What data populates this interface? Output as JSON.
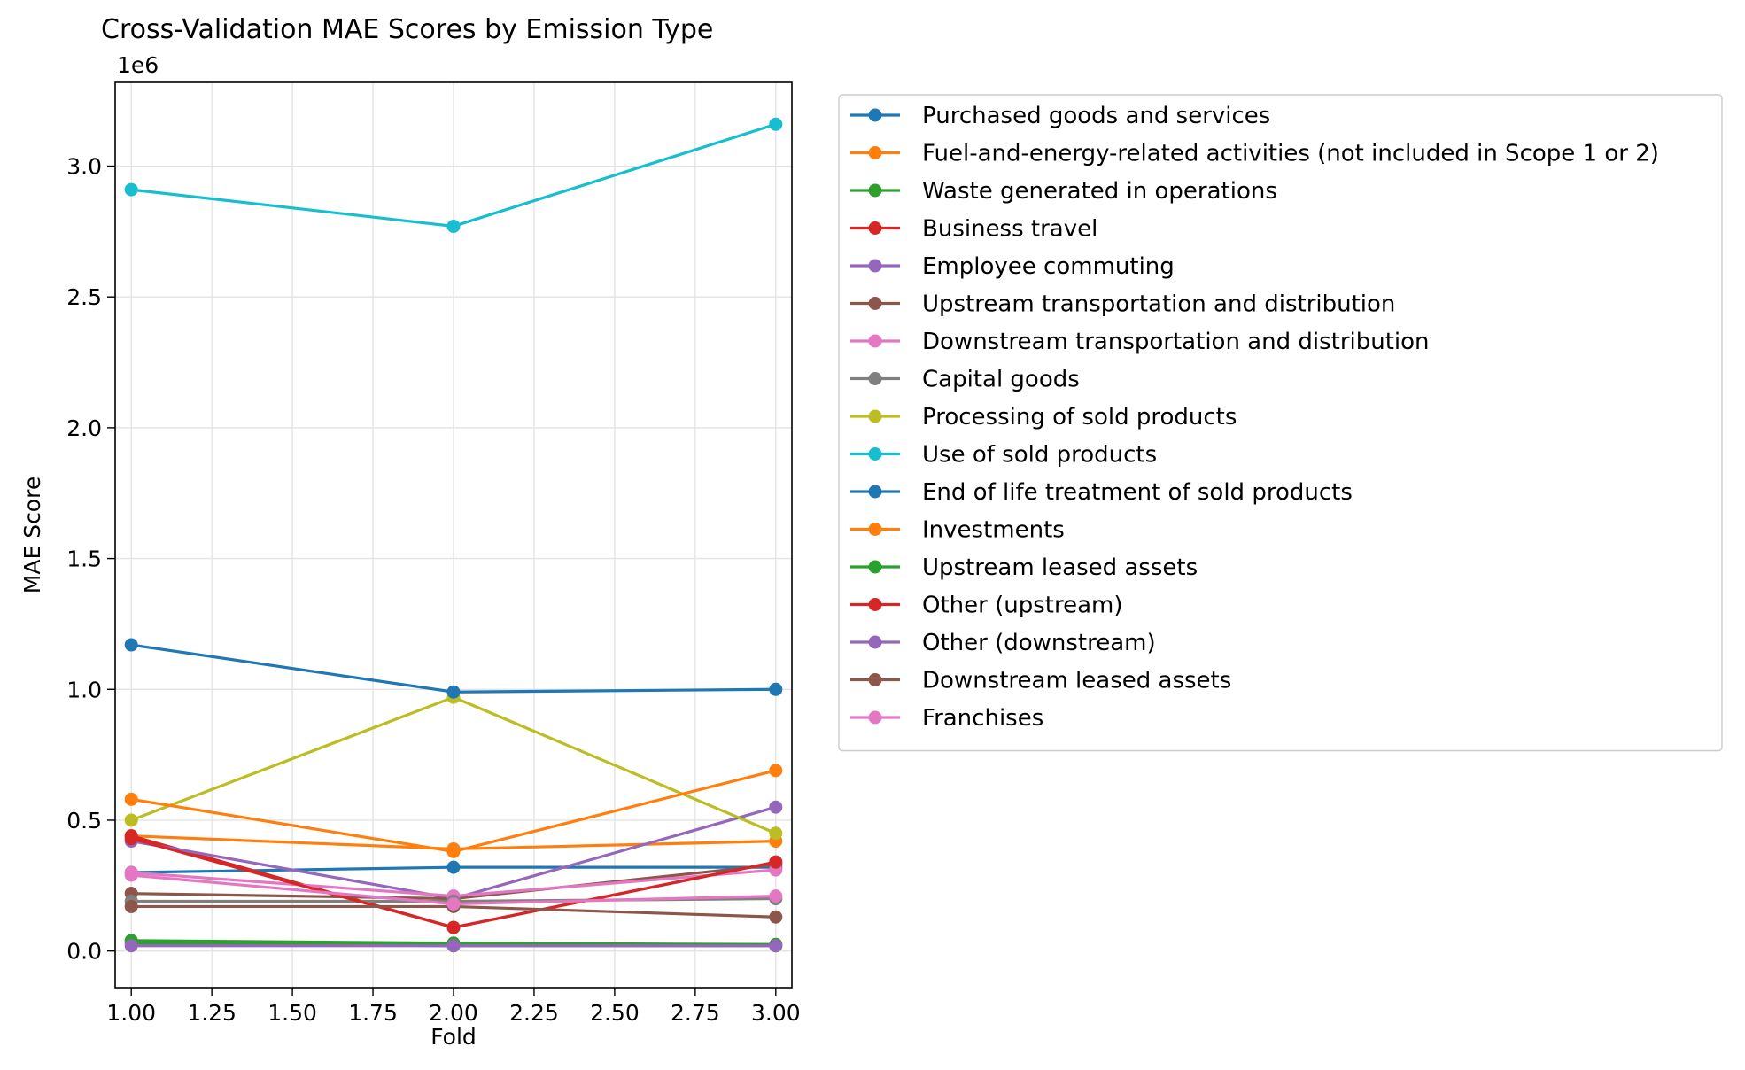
{
  "chart_data": {
    "type": "line",
    "title": "Cross-Validation MAE Scores by Emission Type",
    "xlabel": "Fold",
    "ylabel": "MAE Score",
    "y_scale_label": "1e6",
    "x": [
      1.0,
      2.0,
      3.0
    ],
    "xlim": [
      0.95,
      3.05
    ],
    "ylim": [
      -0.14,
      3.32
    ],
    "x_ticks": [
      1.0,
      1.25,
      1.5,
      1.75,
      2.0,
      2.25,
      2.5,
      2.75,
      3.0
    ],
    "x_tick_labels": [
      "1.00",
      "1.25",
      "1.50",
      "1.75",
      "2.00",
      "2.25",
      "2.50",
      "2.75",
      "3.00"
    ],
    "y_ticks": [
      0.0,
      0.5,
      1.0,
      1.5,
      2.0,
      2.5,
      3.0
    ],
    "y_tick_labels": [
      "0.0",
      "0.5",
      "1.0",
      "1.5",
      "2.0",
      "2.5",
      "3.0"
    ],
    "grid": true,
    "legend_position": "outside-right",
    "series": [
      {
        "name": "Purchased goods and services",
        "color": "#1f77b4",
        "values": [
          0.3,
          0.32,
          0.32
        ]
      },
      {
        "name": "Fuel-and-energy-related activities (not included in Scope 1 or 2)",
        "color": "#ff7f0e",
        "values": [
          0.44,
          0.39,
          0.42
        ]
      },
      {
        "name": "Waste generated in operations",
        "color": "#2ca02c",
        "values": [
          0.04,
          0.03,
          0.025
        ]
      },
      {
        "name": "Business travel",
        "color": "#d62728",
        "values": [
          0.44,
          0.09,
          0.34
        ]
      },
      {
        "name": "Employee commuting",
        "color": "#9467bd",
        "values": [
          0.42,
          0.2,
          0.55
        ]
      },
      {
        "name": "Upstream transportation and distribution",
        "color": "#8c564b",
        "values": [
          0.22,
          0.2,
          0.33
        ]
      },
      {
        "name": "Downstream transportation and distribution",
        "color": "#e377c2",
        "values": [
          0.3,
          0.21,
          0.31
        ]
      },
      {
        "name": "Capital goods",
        "color": "#7f7f7f",
        "values": [
          0.19,
          0.19,
          0.2
        ]
      },
      {
        "name": "Processing of sold products",
        "color": "#bcbd22",
        "values": [
          0.5,
          0.97,
          0.45
        ]
      },
      {
        "name": "Use of sold products",
        "color": "#17becf",
        "values": [
          2.91,
          2.77,
          3.16
        ]
      },
      {
        "name": "End of life treatment of sold products",
        "color": "#1f77b4",
        "values": [
          1.17,
          0.99,
          1.0
        ]
      },
      {
        "name": "Investments",
        "color": "#ff7f0e",
        "values": [
          0.58,
          0.38,
          0.69
        ]
      },
      {
        "name": "Upstream leased assets",
        "color": "#2ca02c",
        "values": [
          0.03,
          0.02,
          0.02
        ]
      },
      {
        "name": "Other (upstream)",
        "color": "#d62728",
        "values": [
          0.43,
          0.09,
          0.34
        ]
      },
      {
        "name": "Other (downstream)",
        "color": "#9467bd",
        "values": [
          0.02,
          0.02,
          0.02
        ]
      },
      {
        "name": "Downstream leased assets",
        "color": "#8c564b",
        "values": [
          0.17,
          0.17,
          0.13
        ]
      },
      {
        "name": "Franchises",
        "color": "#e377c2",
        "values": [
          0.29,
          0.18,
          0.21
        ]
      }
    ]
  }
}
